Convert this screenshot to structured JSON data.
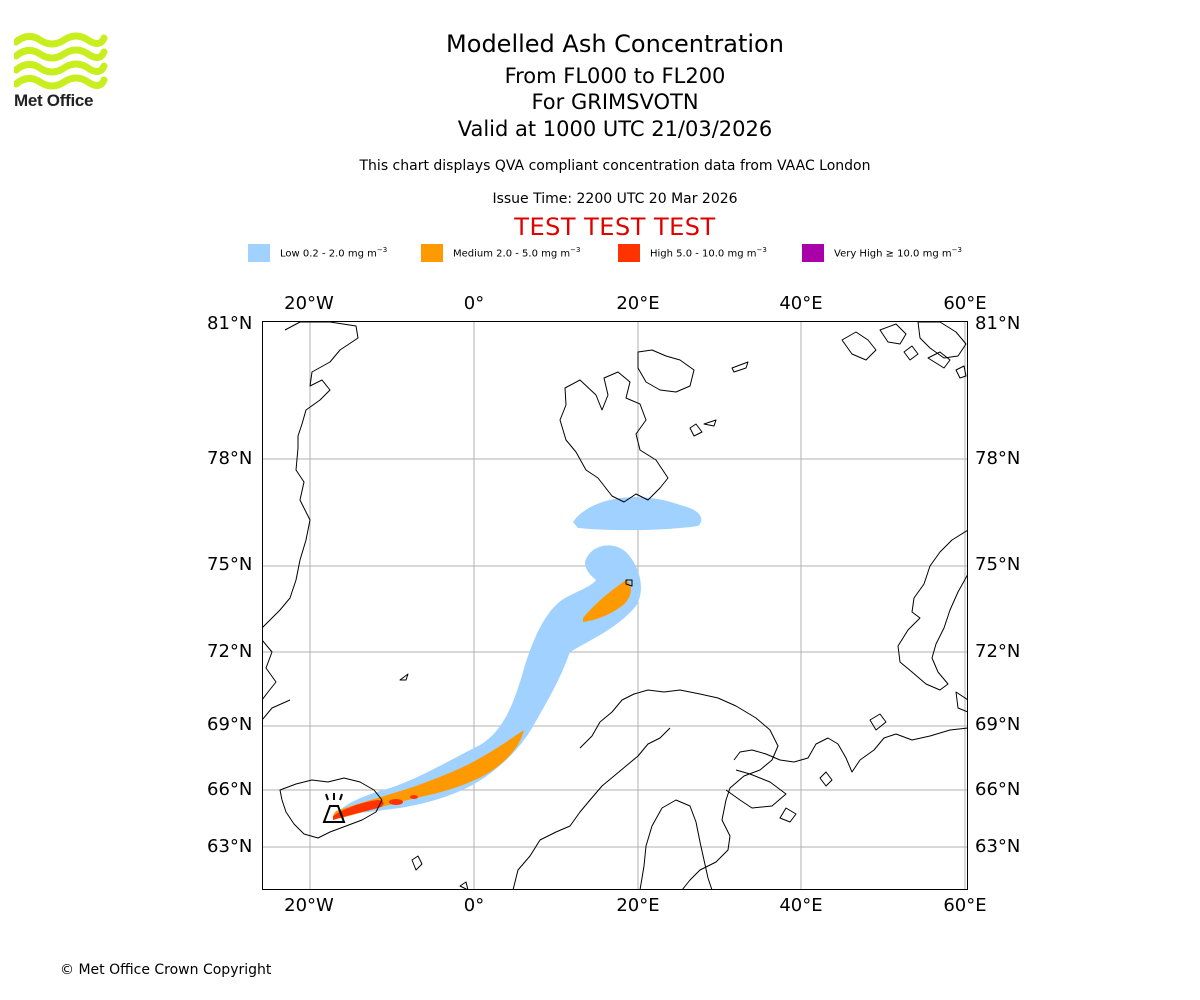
{
  "branding": {
    "logo_text": "Met Office",
    "logo_color": "#c8ee1e",
    "copyright": "© Met Office Crown Copyright"
  },
  "header": {
    "title": "Modelled Ash Concentration",
    "levels": "From FL000 to FL200",
    "volcano": "For GRIMSVOTN",
    "valid": "Valid at 1000 UTC 21/03/2026",
    "note": "This chart displays QVA compliant concentration data from VAAC London",
    "issue": "Issue Time: 2200 UTC 20 Mar 2026",
    "test_banner": "TEST TEST TEST",
    "test_color": "#e00000"
  },
  "legend": [
    {
      "label": "Low 0.2 - 2.0 mg m",
      "color": "#a1d2ff"
    },
    {
      "label": "Medium 2.0 - 5.0 mg m",
      "color": "#ff9900"
    },
    {
      "label": "High 5.0 - 10.0 mg m",
      "color": "#ff3300"
    },
    {
      "label": "Very High  ≥  10.0 mg m",
      "color": "#aa00aa"
    }
  ],
  "legend_unit_exp": "−3",
  "axes": {
    "lon_labels": [
      "20°W",
      "0°",
      "20°E",
      "40°E",
      "60°E"
    ],
    "lat_labels": [
      "81°N",
      "78°N",
      "75°N",
      "72°N",
      "69°N",
      "66°N",
      "63°N"
    ]
  },
  "map": {
    "extent_deg": {
      "lon_min": -26,
      "lon_max": 60.5,
      "lat_min": 61.2,
      "lat_max": 81
    },
    "volcano_symbol": "volcano-icon",
    "volcano_location": {
      "lon": -17.3,
      "lat": 64.4
    }
  }
}
